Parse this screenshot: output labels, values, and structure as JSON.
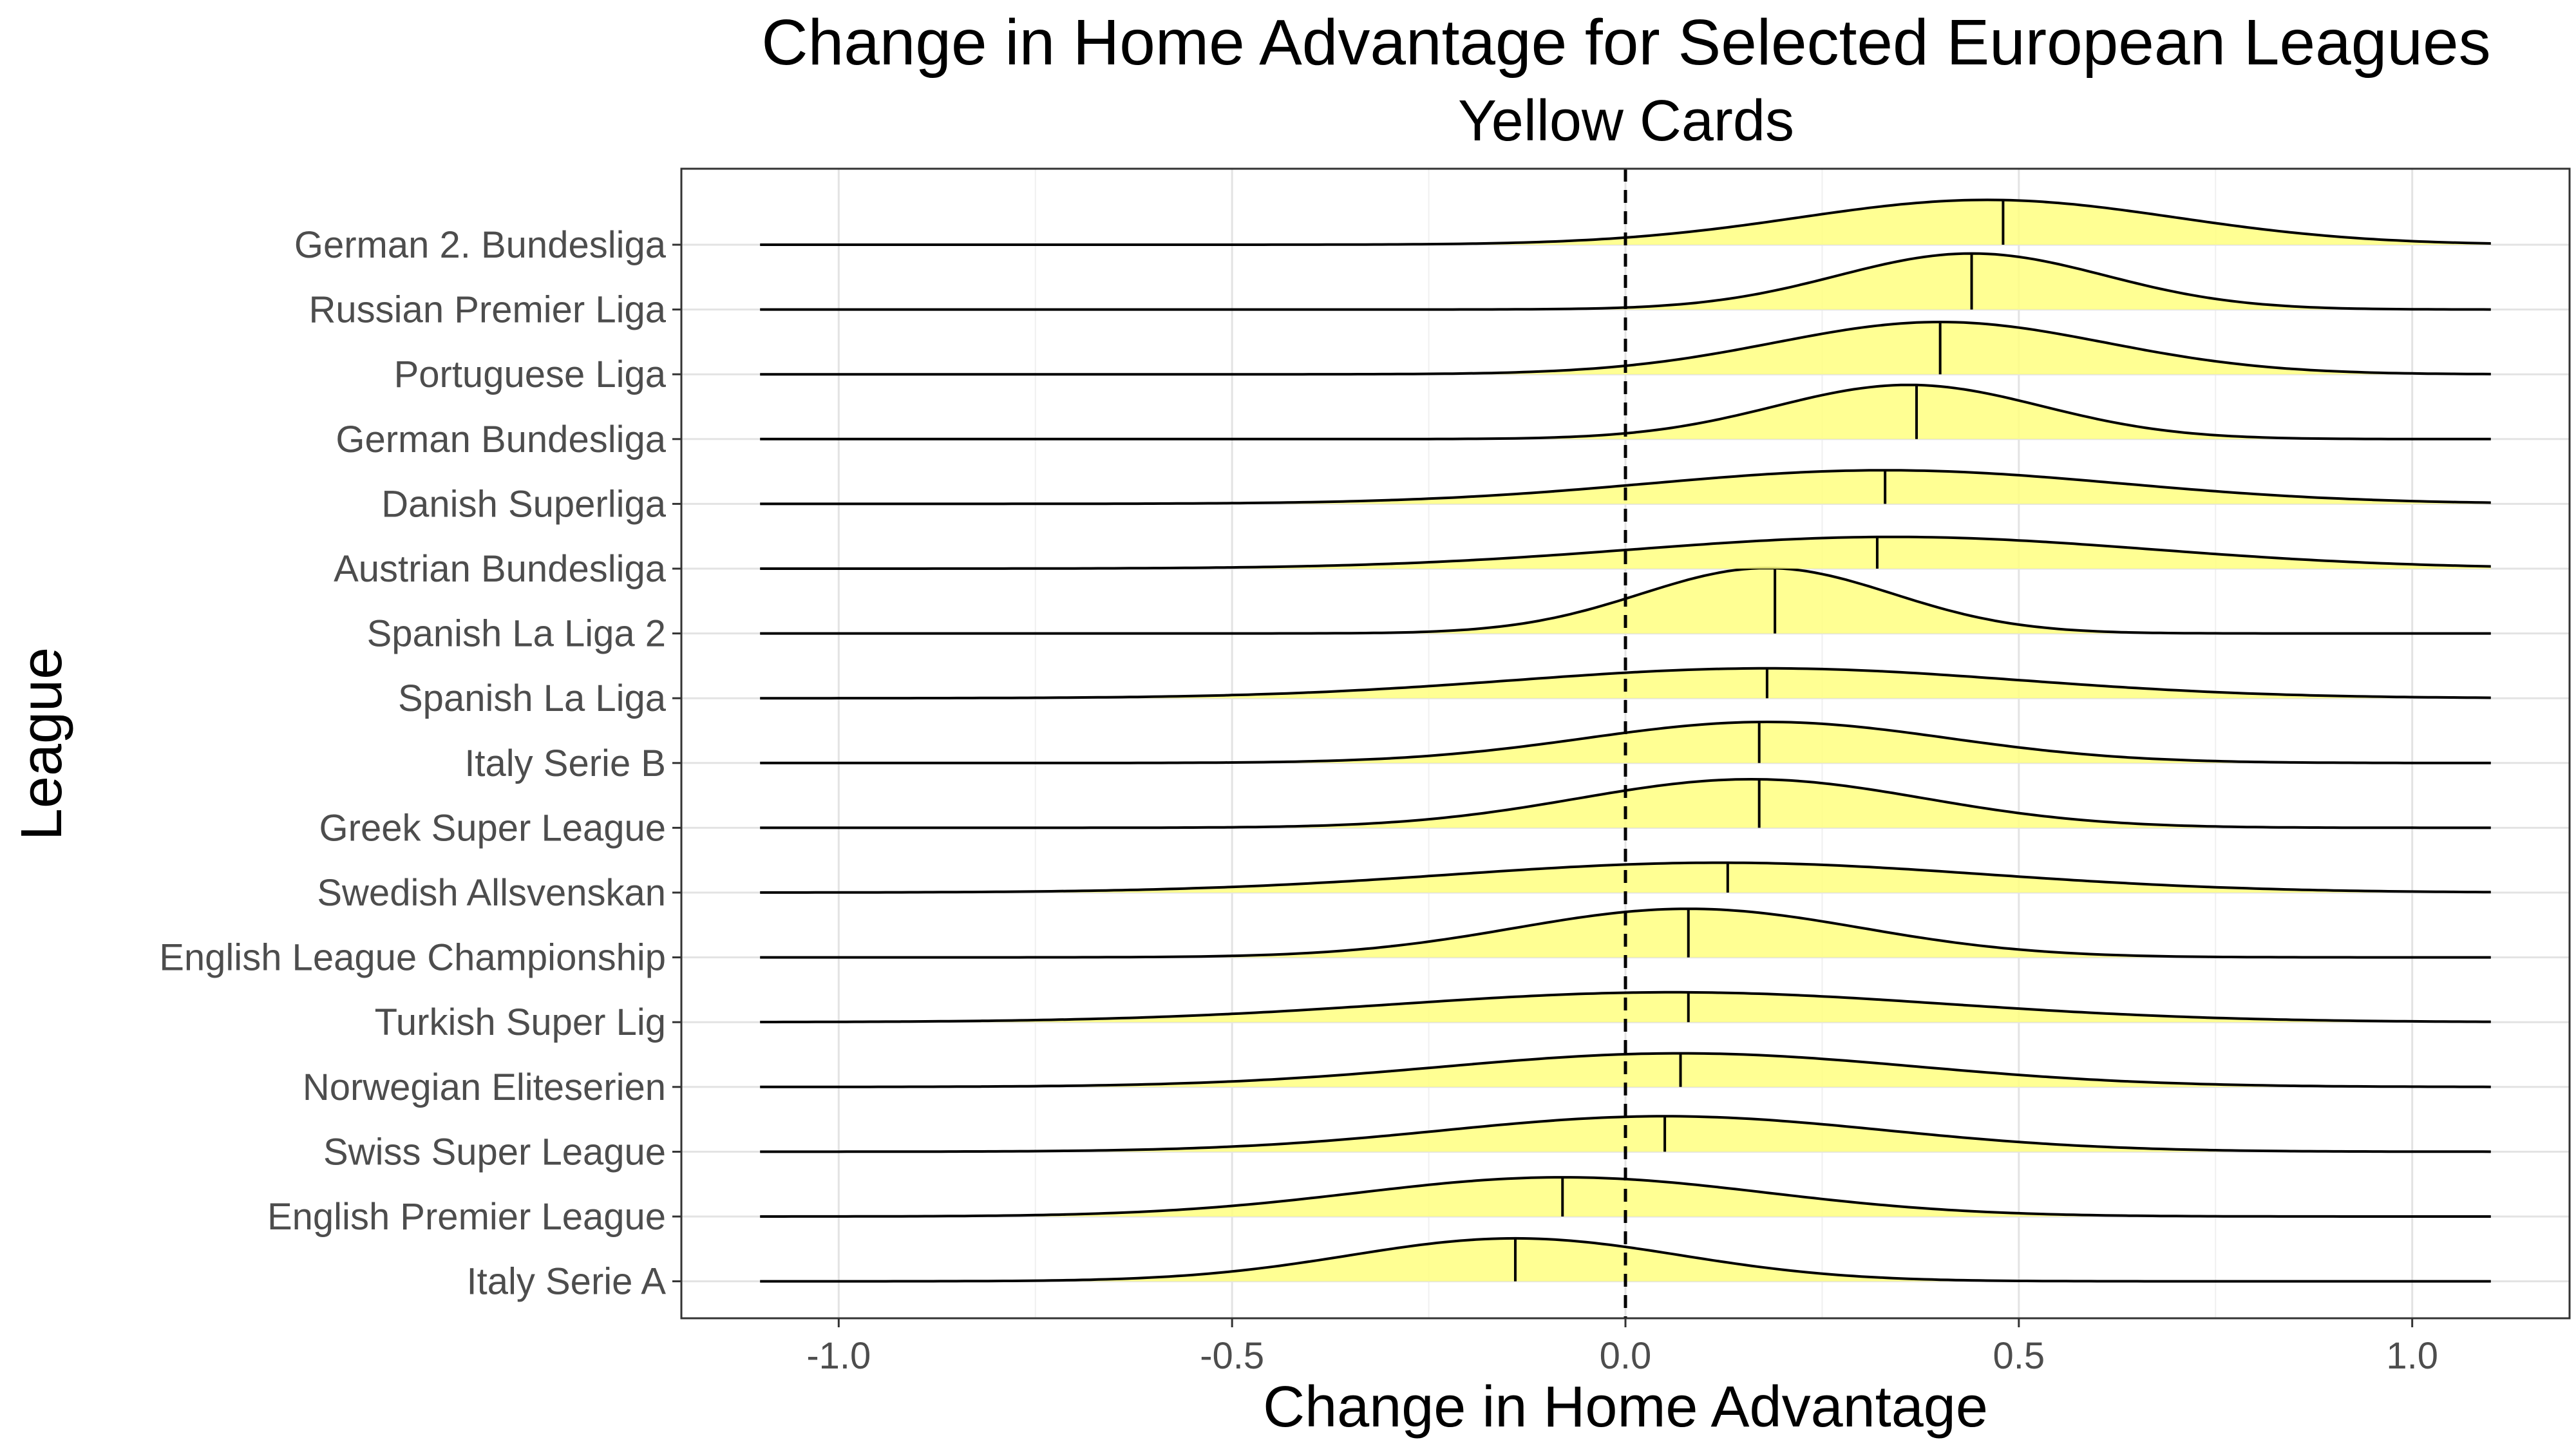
{
  "chart_data": {
    "type": "ridgeline",
    "title": "Change in Home Advantage for Selected European Leagues",
    "subtitle": "Yellow Cards",
    "xlabel": "Change in Home Advantage",
    "ylabel": "League",
    "xlim": [
      -1.2,
      1.2
    ],
    "x_range": [
      -1.1,
      1.1
    ],
    "x_ticks": [
      "-1.0",
      "-0.5",
      "0.0",
      "0.5",
      "1.0"
    ],
    "reference_line": 0.0,
    "fill_color": "#ffff80",
    "line_color": "#000000",
    "grid": true,
    "series": [
      {
        "name": "German 2. Bundesliga",
        "median": 0.48,
        "peak": 0.46,
        "width": 0.24,
        "height": 1.2
      },
      {
        "name": "Russian Premier Liga",
        "median": 0.44,
        "peak": 0.44,
        "width": 0.17,
        "height": 1.5
      },
      {
        "name": "Portuguese Liga",
        "median": 0.4,
        "peak": 0.4,
        "width": 0.21,
        "height": 1.4
      },
      {
        "name": "German Bundesliga",
        "median": 0.37,
        "peak": 0.36,
        "width": 0.17,
        "height": 1.45
      },
      {
        "name": "Danish Superliga",
        "median": 0.33,
        "peak": 0.33,
        "width": 0.3,
        "height": 0.9
      },
      {
        "name": "Austrian Bundesliga",
        "median": 0.32,
        "peak": 0.34,
        "width": 0.33,
        "height": 0.85
      },
      {
        "name": "Spanish La Liga 2",
        "median": 0.19,
        "peak": 0.18,
        "width": 0.16,
        "height": 1.75
      },
      {
        "name": "Spanish La Liga",
        "median": 0.18,
        "peak": 0.18,
        "width": 0.32,
        "height": 0.8
      },
      {
        "name": "Italy Serie B",
        "median": 0.17,
        "peak": 0.18,
        "width": 0.23,
        "height": 1.1
      },
      {
        "name": "Greek Super League",
        "median": 0.17,
        "peak": 0.16,
        "width": 0.22,
        "height": 1.3
      },
      {
        "name": "Swedish Allsvenskan",
        "median": 0.13,
        "peak": 0.12,
        "width": 0.34,
        "height": 0.8
      },
      {
        "name": "English League Championship",
        "median": 0.08,
        "peak": 0.08,
        "width": 0.22,
        "height": 1.3
      },
      {
        "name": "Turkish Super Lig",
        "median": 0.08,
        "peak": 0.06,
        "width": 0.35,
        "height": 0.8
      },
      {
        "name": "Norwegian Eliteserien",
        "median": 0.07,
        "peak": 0.07,
        "width": 0.3,
        "height": 0.9
      },
      {
        "name": "Swiss Super League",
        "median": 0.05,
        "peak": 0.05,
        "width": 0.28,
        "height": 0.95
      },
      {
        "name": "English Premier League",
        "median": -0.08,
        "peak": -0.08,
        "width": 0.26,
        "height": 1.05
      },
      {
        "name": "Italy Serie A",
        "median": -0.14,
        "peak": -0.14,
        "width": 0.21,
        "height": 1.15
      }
    ]
  }
}
